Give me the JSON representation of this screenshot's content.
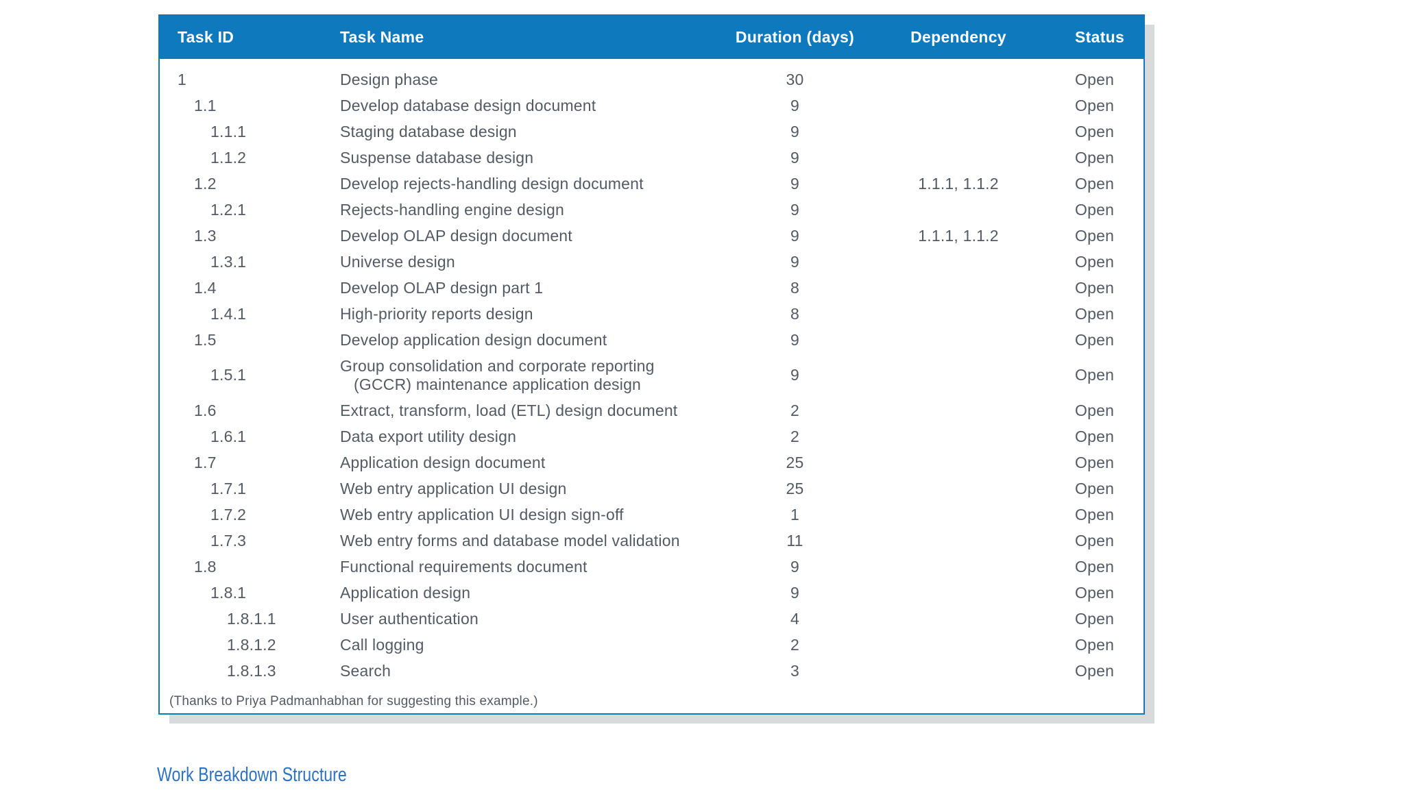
{
  "caption": "Work Breakdown Structure",
  "colors": {
    "header_bg": "#0e79bd",
    "table_border": "#0e79bd",
    "body_text": "#545a64",
    "caption_text": "#2d73c4",
    "shadow": "#d8dadc"
  },
  "table": {
    "columns": [
      "Task ID",
      "Task Name",
      "Duration (days)",
      "Dependency",
      "Status"
    ],
    "footnote": "(Thanks to Priya Padmanhabhan for suggesting this example.)",
    "rows": [
      {
        "id": "1",
        "level": 0,
        "name": "Design phase",
        "name2": "",
        "duration": "30",
        "dependency": "",
        "status": "Open"
      },
      {
        "id": "1.1",
        "level": 1,
        "name": "Develop database design document",
        "name2": "",
        "duration": "9",
        "dependency": "",
        "status": "Open"
      },
      {
        "id": "1.1.1",
        "level": 2,
        "name": "Staging database design",
        "name2": "",
        "duration": "9",
        "dependency": "",
        "status": "Open"
      },
      {
        "id": "1.1.2",
        "level": 2,
        "name": "Suspense database design",
        "name2": "",
        "duration": "9",
        "dependency": "",
        "status": "Open"
      },
      {
        "id": "1.2",
        "level": 1,
        "name": "Develop rejects-handling design document",
        "name2": "",
        "duration": "9",
        "dependency": "1.1.1, 1.1.2",
        "status": "Open"
      },
      {
        "id": "1.2.1",
        "level": 2,
        "name": "Rejects-handling engine design",
        "name2": "",
        "duration": "9",
        "dependency": "",
        "status": "Open"
      },
      {
        "id": "1.3",
        "level": 1,
        "name": "Develop OLAP design document",
        "name2": "",
        "duration": "9",
        "dependency": "1.1.1, 1.1.2",
        "status": "Open"
      },
      {
        "id": "1.3.1",
        "level": 2,
        "name": "Universe design",
        "name2": "",
        "duration": "9",
        "dependency": "",
        "status": "Open"
      },
      {
        "id": "1.4",
        "level": 1,
        "name": "Develop OLAP design part 1",
        "name2": "",
        "duration": "8",
        "dependency": "",
        "status": "Open"
      },
      {
        "id": "1.4.1",
        "level": 2,
        "name": "High-priority reports design",
        "name2": "",
        "duration": "8",
        "dependency": "",
        "status": "Open"
      },
      {
        "id": "1.5",
        "level": 1,
        "name": "Develop application design document",
        "name2": "",
        "duration": "9",
        "dependency": "",
        "status": "Open"
      },
      {
        "id": "1.5.1",
        "level": 2,
        "name": "Group consolidation and corporate reporting",
        "name2": "(GCCR) maintenance application design",
        "duration": "9",
        "dependency": "",
        "status": "Open"
      },
      {
        "id": "1.6",
        "level": 1,
        "name": "Extract, transform, load (ETL) design document",
        "name2": "",
        "duration": "2",
        "dependency": "",
        "status": "Open"
      },
      {
        "id": "1.6.1",
        "level": 2,
        "name": "Data export utility design",
        "name2": "",
        "duration": "2",
        "dependency": "",
        "status": "Open"
      },
      {
        "id": "1.7",
        "level": 1,
        "name": "Application design document",
        "name2": "",
        "duration": "25",
        "dependency": "",
        "status": "Open"
      },
      {
        "id": "1.7.1",
        "level": 2,
        "name": "Web entry application UI design",
        "name2": "",
        "duration": "25",
        "dependency": "",
        "status": "Open"
      },
      {
        "id": "1.7.2",
        "level": 2,
        "name": "Web entry application UI design sign-off",
        "name2": "",
        "duration": "1",
        "dependency": "",
        "status": "Open"
      },
      {
        "id": "1.7.3",
        "level": 2,
        "name": "Web entry forms and database model validation",
        "name2": "",
        "duration": "11",
        "dependency": "",
        "status": "Open"
      },
      {
        "id": "1.8",
        "level": 1,
        "name": "Functional requirements document",
        "name2": "",
        "duration": "9",
        "dependency": "",
        "status": "Open"
      },
      {
        "id": "1.8.1",
        "level": 2,
        "name": "Application design",
        "name2": "",
        "duration": "9",
        "dependency": "",
        "status": "Open"
      },
      {
        "id": "1.8.1.1",
        "level": 3,
        "name": "User authentication",
        "name2": "",
        "duration": "4",
        "dependency": "",
        "status": "Open"
      },
      {
        "id": "1.8.1.2",
        "level": 3,
        "name": "Call logging",
        "name2": "",
        "duration": "2",
        "dependency": "",
        "status": "Open"
      },
      {
        "id": "1.8.1.3",
        "level": 3,
        "name": "Search",
        "name2": "",
        "duration": "3",
        "dependency": "",
        "status": "Open"
      }
    ]
  }
}
